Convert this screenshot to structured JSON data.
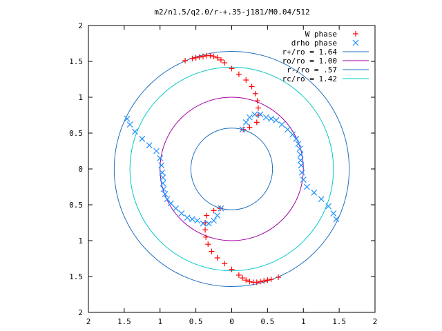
{
  "chart_data": {
    "type": "scatter",
    "title": "m2/n1.5/q2.0/r-+.35-j181/M0.04/512",
    "xlabel": "",
    "ylabel": "",
    "xlim": [
      -2,
      2
    ],
    "ylim": [
      -2,
      2
    ],
    "grid": false,
    "legend_position": "top-right",
    "x_tick_labels": [
      "2",
      "1.5",
      "1",
      "0.5",
      "0",
      "0.5",
      "1",
      "1.5",
      "2"
    ],
    "y_tick_labels": [
      "2",
      "1.5",
      "1",
      "0.5",
      "0",
      "0.5",
      "1",
      "1.5",
      "2"
    ],
    "circles": [
      {
        "label": "r+/ro = 1.64",
        "radius": 1.64,
        "color": "#1f6fbf"
      },
      {
        "label": "ro/ro = 1.00",
        "radius": 1.0,
        "color": "#a000a0"
      },
      {
        "label": "r-/ro = .57",
        "radius": 0.57,
        "color": "#1f6fbf"
      },
      {
        "label": "rc/ro = 1.42",
        "radius": 1.42,
        "color": "#00c8c8"
      }
    ],
    "series": [
      {
        "name": "W phase",
        "marker": "plus",
        "color": "#ff0000",
        "points": [
          [
            -0.65,
            1.51
          ],
          [
            -0.55,
            1.54
          ],
          [
            -0.5,
            1.55
          ],
          [
            -0.45,
            1.56
          ],
          [
            -0.4,
            1.57
          ],
          [
            -0.35,
            1.58
          ],
          [
            -0.3,
            1.58
          ],
          [
            -0.25,
            1.57
          ],
          [
            -0.2,
            1.55
          ],
          [
            -0.15,
            1.52
          ],
          [
            -0.1,
            1.48
          ],
          [
            0.0,
            1.4
          ],
          [
            0.1,
            1.32
          ],
          [
            0.2,
            1.24
          ],
          [
            0.28,
            1.15
          ],
          [
            0.33,
            1.05
          ],
          [
            0.36,
            0.95
          ],
          [
            0.37,
            0.85
          ],
          [
            0.37,
            0.75
          ],
          [
            0.35,
            0.65
          ],
          [
            0.25,
            0.58
          ],
          [
            0.16,
            0.55
          ],
          [
            0.65,
            -1.51
          ],
          [
            0.55,
            -1.54
          ],
          [
            0.5,
            -1.55
          ],
          [
            0.45,
            -1.56
          ],
          [
            0.4,
            -1.57
          ],
          [
            0.35,
            -1.58
          ],
          [
            0.3,
            -1.58
          ],
          [
            0.25,
            -1.57
          ],
          [
            0.2,
            -1.55
          ],
          [
            0.15,
            -1.52
          ],
          [
            0.1,
            -1.48
          ],
          [
            0.0,
            -1.4
          ],
          [
            -0.1,
            -1.32
          ],
          [
            -0.2,
            -1.24
          ],
          [
            -0.28,
            -1.15
          ],
          [
            -0.33,
            -1.05
          ],
          [
            -0.36,
            -0.95
          ],
          [
            -0.37,
            -0.85
          ],
          [
            -0.37,
            -0.75
          ],
          [
            -0.35,
            -0.65
          ],
          [
            -0.25,
            -0.58
          ],
          [
            -0.16,
            -0.55
          ]
        ]
      },
      {
        "name": "drho phase",
        "marker": "cross",
        "color": "#1e90ff",
        "points": [
          [
            0.15,
            0.55
          ],
          [
            0.2,
            0.65
          ],
          [
            0.25,
            0.72
          ],
          [
            0.32,
            0.76
          ],
          [
            0.4,
            0.76
          ],
          [
            0.48,
            0.72
          ],
          [
            0.55,
            0.7
          ],
          [
            0.62,
            0.68
          ],
          [
            0.7,
            0.62
          ],
          [
            0.78,
            0.55
          ],
          [
            0.85,
            0.48
          ],
          [
            0.9,
            0.42
          ],
          [
            0.93,
            0.35
          ],
          [
            0.95,
            0.28
          ],
          [
            0.96,
            0.2
          ],
          [
            0.96,
            0.12
          ],
          [
            0.97,
            0.05
          ],
          [
            0.98,
            -0.05
          ],
          [
            1.0,
            -0.15
          ],
          [
            1.05,
            -0.25
          ],
          [
            1.15,
            -0.33
          ],
          [
            1.25,
            -0.42
          ],
          [
            1.35,
            -0.52
          ],
          [
            1.42,
            -0.62
          ],
          [
            1.46,
            -0.7
          ],
          [
            -0.15,
            -0.55
          ],
          [
            -0.2,
            -0.65
          ],
          [
            -0.25,
            -0.72
          ],
          [
            -0.32,
            -0.76
          ],
          [
            -0.4,
            -0.76
          ],
          [
            -0.48,
            -0.72
          ],
          [
            -0.55,
            -0.7
          ],
          [
            -0.62,
            -0.68
          ],
          [
            -0.7,
            -0.62
          ],
          [
            -0.78,
            -0.55
          ],
          [
            -0.85,
            -0.48
          ],
          [
            -0.9,
            -0.42
          ],
          [
            -0.93,
            -0.35
          ],
          [
            -0.95,
            -0.28
          ],
          [
            -0.96,
            -0.2
          ],
          [
            -0.96,
            -0.12
          ],
          [
            -0.97,
            -0.05
          ],
          [
            -0.98,
            0.05
          ],
          [
            -1.0,
            0.15
          ],
          [
            -1.05,
            0.25
          ],
          [
            -1.15,
            0.33
          ],
          [
            -1.25,
            0.42
          ],
          [
            -1.35,
            0.52
          ],
          [
            -1.42,
            0.62
          ],
          [
            -1.46,
            0.7
          ]
        ]
      }
    ],
    "legend": [
      {
        "label": "W phase",
        "kind": "marker",
        "marker": "plus",
        "color": "#ff0000"
      },
      {
        "label": "drho phase",
        "kind": "marker",
        "marker": "cross",
        "color": "#1e90ff"
      },
      {
        "label": "r+/ro = 1.64",
        "kind": "line",
        "color": "#1f6fbf"
      },
      {
        "label": "ro/ro = 1.00",
        "kind": "line",
        "color": "#a000a0"
      },
      {
        "label": "r-/ro = .57",
        "kind": "line",
        "color": "#1f6fbf"
      },
      {
        "label": "rc/ro = 1.42",
        "kind": "line",
        "color": "#00c8c8"
      }
    ]
  }
}
